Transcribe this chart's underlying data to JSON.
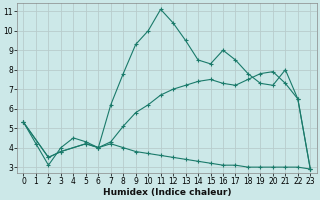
{
  "xlabel": "Humidex (Indice chaleur)",
  "bg_color": "#cce8e8",
  "grid_color": "#b8cccc",
  "line_color": "#1a7a6a",
  "xlim": [
    -0.5,
    23.5
  ],
  "ylim": [
    2.7,
    11.4
  ],
  "xticks": [
    0,
    1,
    2,
    3,
    4,
    5,
    6,
    7,
    8,
    9,
    10,
    11,
    12,
    13,
    14,
    15,
    16,
    17,
    18,
    19,
    20,
    21,
    22,
    23
  ],
  "yticks": [
    3,
    4,
    5,
    6,
    7,
    8,
    9,
    10,
    11
  ],
  "line1_x": [
    0,
    1,
    2,
    3,
    4,
    5,
    6,
    7,
    8,
    9,
    10,
    11,
    12,
    13,
    14,
    15,
    16,
    17,
    18,
    19,
    20,
    21,
    22,
    23
  ],
  "line1_y": [
    5.3,
    4.2,
    3.1,
    4.0,
    4.5,
    4.3,
    4.0,
    6.2,
    7.8,
    9.3,
    10.0,
    11.1,
    10.4,
    9.5,
    8.5,
    8.3,
    9.0,
    8.5,
    7.8,
    7.3,
    7.2,
    8.0,
    6.5,
    2.9
  ],
  "line2_x": [
    0,
    2,
    3,
    5,
    6,
    7,
    8,
    9,
    10,
    11,
    12,
    13,
    14,
    15,
    16,
    17,
    18,
    19,
    20,
    21,
    22,
    23
  ],
  "line2_y": [
    5.3,
    3.5,
    3.8,
    4.2,
    4.0,
    4.3,
    5.1,
    5.8,
    6.2,
    6.7,
    7.0,
    7.2,
    7.4,
    7.5,
    7.3,
    7.2,
    7.5,
    7.8,
    7.9,
    7.3,
    6.5,
    2.9
  ],
  "line3_x": [
    0,
    2,
    3,
    5,
    6,
    7,
    8,
    9,
    10,
    11,
    12,
    13,
    14,
    15,
    16,
    17,
    18,
    19,
    20,
    21,
    22,
    23
  ],
  "line3_y": [
    5.3,
    3.5,
    3.8,
    4.2,
    4.0,
    4.2,
    4.0,
    3.8,
    3.7,
    3.6,
    3.5,
    3.4,
    3.3,
    3.2,
    3.1,
    3.1,
    3.0,
    3.0,
    3.0,
    3.0,
    3.0,
    2.9
  ]
}
